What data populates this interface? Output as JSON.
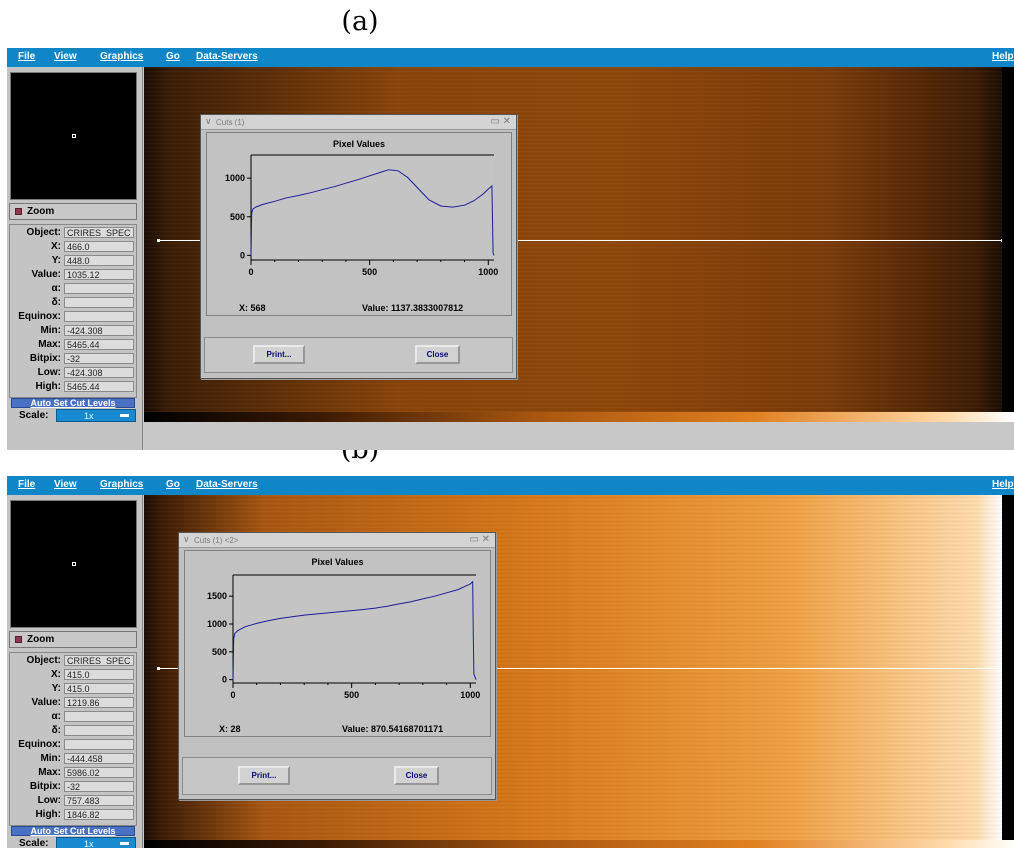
{
  "captions": {
    "a": "(a)",
    "b": "(b)"
  },
  "menu": {
    "file": "File",
    "view": "View",
    "graphics": "Graphics",
    "go": "Go",
    "data_servers": "Data-Servers",
    "help": "Help"
  },
  "zoom_label": "Zoom",
  "auto_button": "Auto Set Cut Levels",
  "scale_label": "Scale:",
  "labels": {
    "object": "Object:",
    "x": "X:",
    "y": "Y:",
    "value": "Value:",
    "alpha": "α:",
    "delta": "δ:",
    "equinox": "Equinox:",
    "min": "Min:",
    "max": "Max:",
    "bitpix": "Bitpix:",
    "low": "Low:",
    "high": "High:"
  },
  "panels": {
    "a": {
      "info": {
        "object": "CRIRES_SPEC",
        "x": "466.0",
        "y": "448.0",
        "value": "1035.12",
        "alpha": "",
        "delta": "",
        "equinox": "",
        "min": "-424.308",
        "max": "5465.44",
        "bitpix": "-32",
        "low": "-424.308",
        "high": "5465.44"
      },
      "scale_value": "1x",
      "dialog": {
        "title": "Cuts (1)",
        "plot_title": "Pixel Values",
        "x_readout": "X: 568",
        "value_readout": "Value: 1137.3833007812",
        "print_button": "Print...",
        "close_button": "Close"
      }
    },
    "b": {
      "info": {
        "object": "CRIRES_SPEC",
        "x": "415.0",
        "y": "415.0",
        "value": "1219.86",
        "alpha": "",
        "delta": "",
        "equinox": "",
        "min": "-444.458",
        "max": "5986.02",
        "bitpix": "-32",
        "low": "757.483",
        "high": "1846.82"
      },
      "scale_value": "1x",
      "dialog": {
        "title": "Cuts (1) <2>",
        "plot_title": "Pixel Values",
        "x_readout": "X: 28",
        "value_readout": "Value: 870.54168701171",
        "print_button": "Print...",
        "close_button": "Close"
      }
    }
  },
  "colors": {
    "menubar": "#0e86c8",
    "series": "#1c1c9a",
    "image_low": "#1a0c03",
    "image_high": "#ffd9a8"
  },
  "chart_data": [
    {
      "type": "line",
      "title": "Pixel Values",
      "xlim": [
        0,
        1024
      ],
      "ylim": [
        -60,
        1300
      ],
      "xticks": [
        0,
        500,
        1000
      ],
      "yticks": [
        0,
        500,
        1000
      ],
      "series": [
        {
          "x": [
            0,
            3,
            8,
            20,
            50,
            100,
            150,
            200,
            250,
            300,
            350,
            400,
            450,
            500,
            550,
            580,
            620,
            660,
            700,
            750,
            800,
            850,
            900,
            940,
            980,
            1000,
            1015,
            1018,
            1020,
            1024
          ],
          "values": [
            0,
            550,
            600,
            625,
            660,
            700,
            745,
            775,
            810,
            850,
            890,
            935,
            980,
            1030,
            1080,
            1110,
            1095,
            1010,
            880,
            720,
            640,
            625,
            650,
            710,
            800,
            860,
            900,
            400,
            30,
            0
          ]
        }
      ]
    },
    {
      "type": "line",
      "title": "Pixel Values",
      "xlim": [
        0,
        1024
      ],
      "ylim": [
        -60,
        1880
      ],
      "xticks": [
        0,
        500,
        1000
      ],
      "yticks": [
        0,
        500,
        1000,
        1500
      ],
      "series": [
        {
          "x": [
            0,
            3,
            8,
            20,
            50,
            100,
            150,
            200,
            250,
            300,
            350,
            400,
            450,
            500,
            550,
            600,
            650,
            700,
            750,
            800,
            850,
            900,
            950,
            980,
            1000,
            1010,
            1012,
            1015,
            1024
          ],
          "values": [
            0,
            740,
            830,
            880,
            950,
            1010,
            1060,
            1100,
            1130,
            1160,
            1180,
            1200,
            1220,
            1240,
            1260,
            1285,
            1320,
            1360,
            1400,
            1450,
            1500,
            1560,
            1620,
            1680,
            1720,
            1760,
            900,
            100,
            0
          ]
        }
      ]
    }
  ]
}
